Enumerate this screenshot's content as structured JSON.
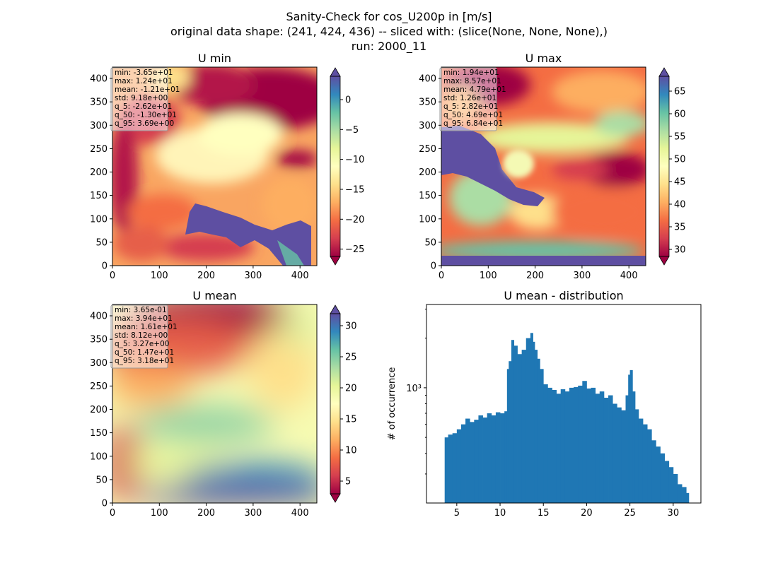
{
  "figure": {
    "title_lines": [
      "Sanity-Check for cos_U200p in [m/s]",
      "original data shape: (241, 424, 436) -- sliced with: (slice(None, None, None),)",
      "run: 2000_11"
    ]
  },
  "colormap": {
    "name": "Spectral",
    "stops": [
      "#9e0142",
      "#d53e4f",
      "#f46d43",
      "#fdae61",
      "#fee08b",
      "#ffffbf",
      "#e6f598",
      "#abdda4",
      "#66c2a5",
      "#3288bd",
      "#5e4fa2"
    ]
  },
  "panels": [
    {
      "title": "U min",
      "stats": [
        "min: -3.65e+01",
        "max: 1.24e+01",
        "mean: -1.21e+01",
        "std: 9.18e+00",
        "q_5: -2.62e+01",
        "q_50: -1.30e+01",
        "q_95: 3.69e+00"
      ],
      "xticks": [
        "0",
        "100",
        "200",
        "300",
        "400"
      ],
      "yticks": [
        "0",
        "50",
        "100",
        "150",
        "200",
        "250",
        "300",
        "350",
        "400"
      ],
      "colorbar": {
        "vmin": -27,
        "vmax": 4,
        "ticks": [
          "0",
          "−5",
          "−10",
          "−15",
          "−20",
          "−25"
        ]
      }
    },
    {
      "title": "U max",
      "stats": [
        "min: 1.94e+01",
        "max: 8.57e+01",
        "mean: 4.79e+01",
        "std: 1.26e+01",
        "q_5: 2.82e+01",
        "q_50: 4.69e+01",
        "q_95: 6.84e+01"
      ],
      "xticks": [
        "0",
        "100",
        "200",
        "300",
        "400"
      ],
      "yticks": [
        "0",
        "50",
        "100",
        "150",
        "200",
        "250",
        "300",
        "350",
        "400"
      ],
      "colorbar": {
        "vmin": 27.5,
        "vmax": 69.5,
        "ticks": [
          "65",
          "60",
          "55",
          "50",
          "45",
          "40",
          "35",
          "30"
        ]
      }
    },
    {
      "title": "U mean",
      "stats": [
        "min: 3.65e-01",
        "max: 3.94e+01",
        "mean: 1.61e+01",
        "std: 8.12e+00",
        "q_5: 3.27e+00",
        "q_50: 1.47e+01",
        "q_95: 3.18e+01"
      ],
      "xticks": [
        "0",
        "100",
        "200",
        "300",
        "400"
      ],
      "yticks": [
        "0",
        "50",
        "100",
        "150",
        "200",
        "250",
        "300",
        "350",
        "400"
      ],
      "colorbar": {
        "vmin": 3,
        "vmax": 32.5,
        "ticks": [
          "30",
          "25",
          "20",
          "15",
          "10",
          "5"
        ]
      }
    }
  ],
  "chart_data": [
    {
      "type": "heatmap",
      "title": "U min",
      "x_range": [
        0,
        436
      ],
      "y_range": [
        0,
        424
      ],
      "colorbar_range": [
        -27,
        4
      ],
      "legend_position": "top-left",
      "grid": false
    },
    {
      "type": "heatmap",
      "title": "U max",
      "x_range": [
        0,
        436
      ],
      "y_range": [
        0,
        424
      ],
      "colorbar_range": [
        27.5,
        69.5
      ],
      "legend_position": "top-left",
      "grid": false
    },
    {
      "type": "heatmap",
      "title": "U mean",
      "x_range": [
        0,
        436
      ],
      "y_range": [
        0,
        424
      ],
      "colorbar_range": [
        3,
        32.5
      ],
      "legend_position": "top-left",
      "grid": false
    },
    {
      "type": "bar",
      "title": "U mean - distribution",
      "xlabel": "",
      "ylabel": "# of occurrence",
      "xticks": [
        "5",
        "10",
        "15",
        "20",
        "25",
        "30"
      ],
      "ytick_label": "10³",
      "yscale": "log",
      "xlim": [
        1.5,
        33.2
      ],
      "ylim": [
        200,
        3200
      ],
      "color": "#1f77b4",
      "grid": false,
      "x": [
        3.6,
        4.0,
        4.5,
        5.0,
        5.5,
        6.0,
        6.5,
        7.0,
        7.5,
        8.0,
        8.5,
        9.0,
        9.5,
        10.0,
        10.5,
        10.8,
        11.0,
        11.3,
        11.6,
        12.0,
        12.5,
        13.0,
        13.5,
        13.8,
        14.0,
        14.3,
        14.6,
        15.0,
        15.5,
        16.0,
        16.5,
        17.0,
        17.5,
        18.0,
        18.5,
        19.0,
        19.5,
        20.0,
        20.5,
        21.0,
        21.5,
        22.0,
        22.5,
        23.0,
        23.5,
        24.0,
        24.5,
        24.8,
        25.0,
        25.3,
        25.6,
        26.0,
        26.5,
        27.0,
        27.5,
        28.0,
        28.5,
        29.0,
        29.5,
        30.0,
        30.5,
        31.0,
        31.5
      ],
      "values": [
        500,
        520,
        530,
        560,
        600,
        650,
        620,
        640,
        680,
        660,
        700,
        680,
        710,
        700,
        720,
        1300,
        1450,
        1950,
        1800,
        1600,
        1700,
        2000,
        2150,
        1900,
        1700,
        1500,
        1300,
        1050,
        1000,
        970,
        920,
        980,
        950,
        1000,
        1010,
        1030,
        1100,
        990,
        1000,
        920,
        950,
        870,
        900,
        800,
        760,
        730,
        900,
        1200,
        1280,
        950,
        740,
        650,
        600,
        560,
        480,
        440,
        400,
        360,
        330,
        300,
        260,
        250,
        230
      ]
    }
  ]
}
